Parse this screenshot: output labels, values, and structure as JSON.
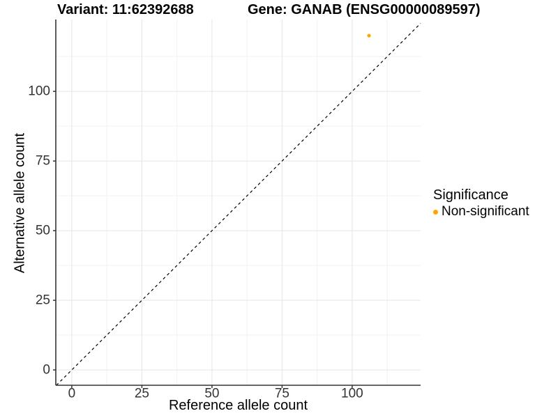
{
  "chart_data": {
    "type": "scatter",
    "title_left": "Variant: 11:62392688",
    "title_right": "Gene: GANAB (ENSG00000089597)",
    "xlabel": "Reference allele count",
    "ylabel": "Alternative allele count",
    "xlim": [
      -5.7,
      124.4
    ],
    "ylim": [
      -5.5,
      125.8
    ],
    "xticks": [
      0,
      25,
      50,
      75,
      100
    ],
    "yticks": [
      0,
      25,
      50,
      75,
      100
    ],
    "minor_xticks": [
      12.5,
      37.5,
      62.5,
      87.5,
      112.5
    ],
    "minor_yticks": [
      12.5,
      37.5,
      62.5,
      87.5,
      112.5
    ],
    "grid": "major+minor",
    "reference_line": {
      "type": "y=x",
      "style": "dashed",
      "color": "#000000"
    },
    "series": [
      {
        "name": "Non-significant",
        "color": "#FFA500",
        "points": [
          [
            106,
            120
          ]
        ]
      }
    ],
    "legend": {
      "title": "Significance",
      "position": "right",
      "items": [
        {
          "label": "Non-significant",
          "color": "#FFA500"
        }
      ]
    },
    "colors": {
      "background": "#FFFFFF",
      "axis_line": "#333333",
      "tick_label": "#333333",
      "grid_major": "#E5E5E5",
      "grid_minor": "#F2F2F2",
      "point": "#FFA500"
    }
  }
}
